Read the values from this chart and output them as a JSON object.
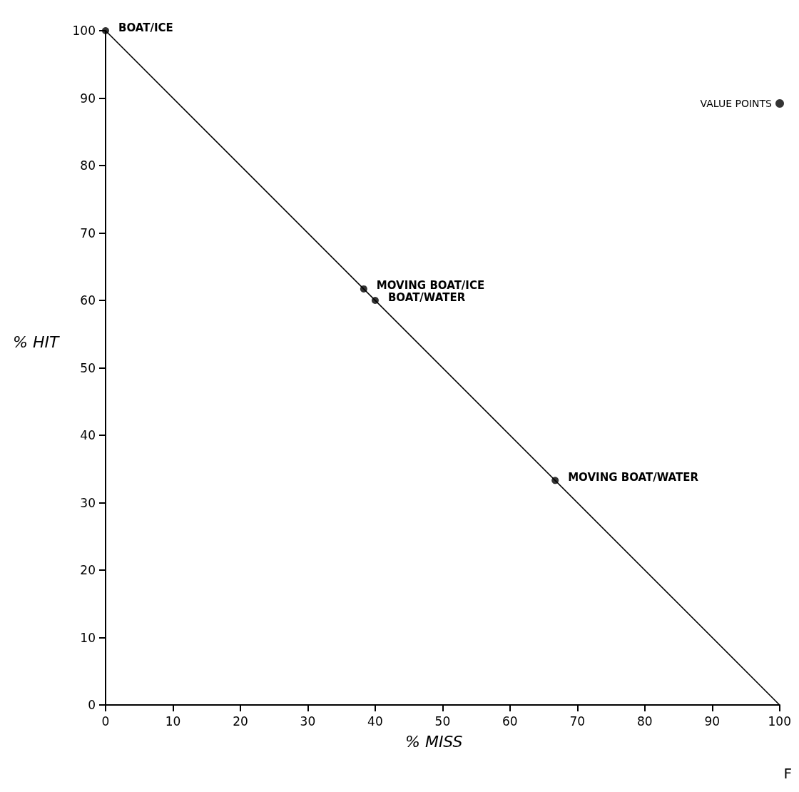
{
  "chart_data": {
    "type": "scatter",
    "xlabel": "% MISS",
    "ylabel": "% HIT",
    "xlim": [
      0,
      100
    ],
    "ylim": [
      0,
      100
    ],
    "xticks": [
      0,
      10,
      20,
      30,
      40,
      50,
      60,
      70,
      80,
      90,
      100
    ],
    "yticks": [
      0,
      10,
      20,
      30,
      40,
      50,
      60,
      70,
      80,
      90,
      100
    ],
    "grid": false,
    "legend": "top right",
    "series": [
      {
        "type": "line",
        "color": "#000000",
        "x": [
          0,
          100
        ],
        "values": [
          100,
          0
        ],
        "marker": "none",
        "line_style": "solid"
      },
      {
        "name": "VALUE POINTS",
        "color": "#000000",
        "x": [
          0,
          38.3,
          40,
          66.7
        ],
        "values": [
          100,
          61.7,
          60,
          33.3
        ],
        "marker": "circle"
      }
    ],
    "annotations": [
      {
        "text": "BOAT/ICE",
        "x": 0,
        "y": 100
      },
      {
        "text": "MOVING BOAT/ICE",
        "x": 38.3,
        "y": 61.7
      },
      {
        "text": "BOAT/WATER",
        "x": 40,
        "y": 60
      },
      {
        "text": "MOVING BOAT/WATER",
        "x": 66.7,
        "y": 33.3
      },
      "F"
    ]
  }
}
